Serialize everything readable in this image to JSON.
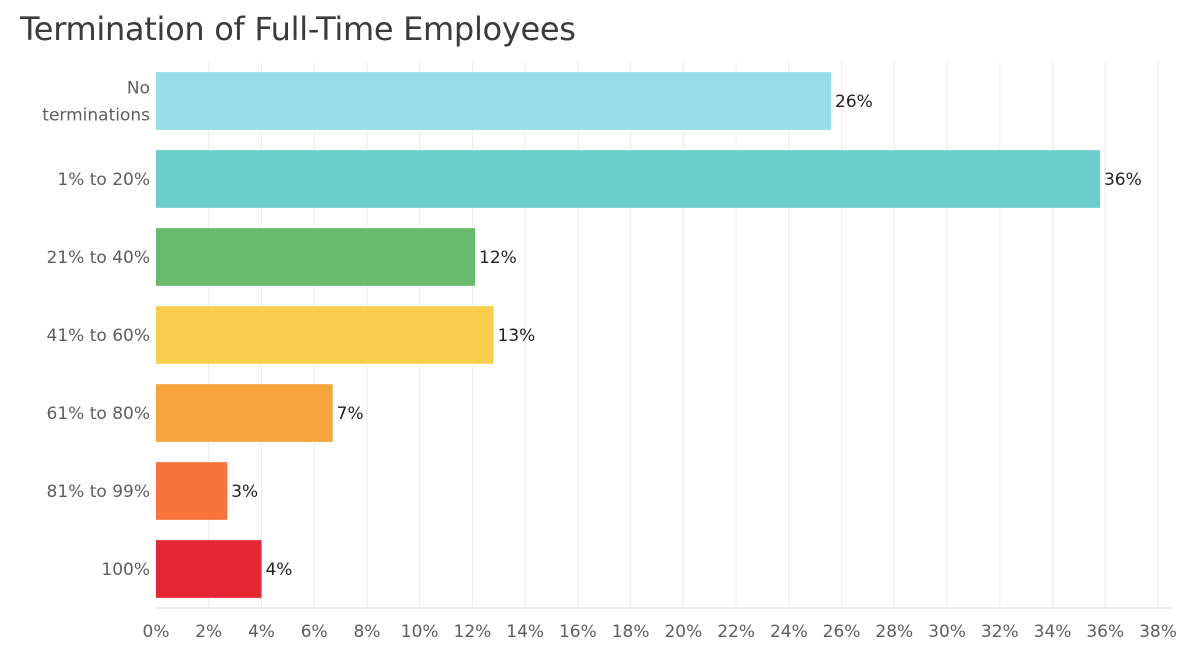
{
  "chart_data": {
    "type": "bar",
    "orientation": "horizontal",
    "title": "Termination of Full-Time Employees",
    "xlabel": "",
    "ylabel": "",
    "categories": [
      "No terminations",
      "1% to 20%",
      "21% to 40%",
      "41% to 60%",
      "61% to 80%",
      "81% to 99%",
      "100%"
    ],
    "category_lines": [
      [
        "No",
        "terminations"
      ],
      [
        "1% to 20%"
      ],
      [
        "21% to 40%"
      ],
      [
        "41% to 60%"
      ],
      [
        "61% to 80%"
      ],
      [
        "81% to 99%"
      ],
      [
        "100%"
      ]
    ],
    "values": [
      25.6,
      35.8,
      12.1,
      12.8,
      6.7,
      2.7,
      4.0
    ],
    "data_labels": [
      "26%",
      "36%",
      "12%",
      "13%",
      "7%",
      "3%",
      "4%"
    ],
    "colors": [
      "#96dde8",
      "#6dcdca",
      "#67bb6b",
      "#f8cf4d",
      "#f6a43c",
      "#f87239",
      "#e52633"
    ],
    "xlim": [
      0,
      38
    ],
    "xticks": [
      0,
      2,
      4,
      6,
      8,
      10,
      12,
      14,
      16,
      18,
      20,
      22,
      24,
      26,
      28,
      30,
      32,
      34,
      36,
      38
    ],
    "xtick_labels": [
      "0%",
      "2%",
      "4%",
      "6%",
      "8%",
      "10%",
      "12%",
      "14%",
      "16%",
      "18%",
      "20%",
      "22%",
      "24%",
      "26%",
      "28%",
      "30%",
      "32%",
      "34%",
      "36%",
      "38%"
    ],
    "grid": true,
    "legend": "none"
  }
}
